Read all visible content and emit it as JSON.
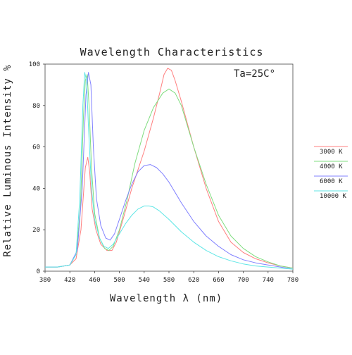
{
  "chart_data": {
    "type": "line",
    "title": "Wavelength Characteristics",
    "xlabel": "Wavelength λ (nm)",
    "ylabel": "Relative Luminous Intensity %",
    "annotation": "Ta=25C°",
    "xlim": [
      380,
      780
    ],
    "ylim": [
      0,
      100
    ],
    "x_ticks": [
      380,
      420,
      460,
      500,
      540,
      580,
      620,
      660,
      700,
      740,
      780
    ],
    "y_ticks": [
      0,
      20,
      40,
      60,
      80,
      100
    ],
    "grid": false,
    "legend_position": "right",
    "colors": {
      "axis": "#444444",
      "text": "#222222"
    },
    "series": [
      {
        "name": "3000 K",
        "color": "#ff7f7f",
        "points": [
          [
            380,
            2
          ],
          [
            400,
            2
          ],
          [
            420,
            3
          ],
          [
            430,
            6
          ],
          [
            438,
            20
          ],
          [
            445,
            50
          ],
          [
            449,
            55
          ],
          [
            452,
            48
          ],
          [
            456,
            30
          ],
          [
            462,
            20
          ],
          [
            470,
            13
          ],
          [
            480,
            10
          ],
          [
            488,
            10
          ],
          [
            495,
            14
          ],
          [
            505,
            24
          ],
          [
            520,
            40
          ],
          [
            540,
            58
          ],
          [
            555,
            74
          ],
          [
            565,
            86
          ],
          [
            572,
            95
          ],
          [
            578,
            98
          ],
          [
            584,
            97
          ],
          [
            590,
            92
          ],
          [
            600,
            82
          ],
          [
            620,
            60
          ],
          [
            640,
            40
          ],
          [
            660,
            24
          ],
          [
            680,
            14
          ],
          [
            700,
            9
          ],
          [
            720,
            6
          ],
          [
            740,
            4
          ],
          [
            760,
            2.5
          ],
          [
            780,
            1.5
          ]
        ]
      },
      {
        "name": "4000 K",
        "color": "#7fdd7f",
        "points": [
          [
            380,
            2
          ],
          [
            400,
            2
          ],
          [
            420,
            3
          ],
          [
            430,
            8
          ],
          [
            437,
            30
          ],
          [
            442,
            75
          ],
          [
            445,
            92
          ],
          [
            448,
            95
          ],
          [
            451,
            80
          ],
          [
            455,
            50
          ],
          [
            460,
            28
          ],
          [
            468,
            16
          ],
          [
            476,
            11
          ],
          [
            483,
            10
          ],
          [
            490,
            12
          ],
          [
            500,
            20
          ],
          [
            512,
            34
          ],
          [
            525,
            52
          ],
          [
            540,
            68
          ],
          [
            555,
            79
          ],
          [
            570,
            86
          ],
          [
            580,
            88
          ],
          [
            590,
            86
          ],
          [
            600,
            80
          ],
          [
            620,
            60
          ],
          [
            640,
            42
          ],
          [
            660,
            27
          ],
          [
            680,
            17
          ],
          [
            700,
            11
          ],
          [
            720,
            7
          ],
          [
            740,
            4.5
          ],
          [
            760,
            2.5
          ],
          [
            780,
            1.5
          ]
        ]
      },
      {
        "name": "6000 K",
        "color": "#8080ff",
        "points": [
          [
            380,
            2
          ],
          [
            400,
            2
          ],
          [
            420,
            3
          ],
          [
            432,
            10
          ],
          [
            440,
            40
          ],
          [
            446,
            85
          ],
          [
            450,
            96
          ],
          [
            454,
            90
          ],
          [
            458,
            60
          ],
          [
            463,
            35
          ],
          [
            470,
            22
          ],
          [
            478,
            16
          ],
          [
            485,
            15
          ],
          [
            492,
            18
          ],
          [
            500,
            25
          ],
          [
            510,
            34
          ],
          [
            520,
            42
          ],
          [
            530,
            48
          ],
          [
            540,
            51
          ],
          [
            550,
            51.5
          ],
          [
            560,
            50
          ],
          [
            570,
            47
          ],
          [
            580,
            43
          ],
          [
            600,
            33
          ],
          [
            620,
            24
          ],
          [
            640,
            17
          ],
          [
            660,
            12
          ],
          [
            680,
            8
          ],
          [
            700,
            5.5
          ],
          [
            720,
            4
          ],
          [
            740,
            3
          ],
          [
            760,
            2
          ],
          [
            780,
            1
          ]
        ]
      },
      {
        "name": "10000 K",
        "color": "#5fe6e6",
        "points": [
          [
            380,
            2
          ],
          [
            400,
            2
          ],
          [
            420,
            3
          ],
          [
            430,
            8
          ],
          [
            436,
            35
          ],
          [
            441,
            80
          ],
          [
            444,
            96
          ],
          [
            447,
            92
          ],
          [
            450,
            70
          ],
          [
            455,
            40
          ],
          [
            460,
            25
          ],
          [
            468,
            16
          ],
          [
            475,
            12
          ],
          [
            482,
            11
          ],
          [
            490,
            13
          ],
          [
            500,
            18
          ],
          [
            510,
            23
          ],
          [
            520,
            27
          ],
          [
            530,
            30
          ],
          [
            540,
            31.5
          ],
          [
            548,
            31.5
          ],
          [
            555,
            31
          ],
          [
            565,
            29
          ],
          [
            580,
            25
          ],
          [
            600,
            19
          ],
          [
            620,
            14
          ],
          [
            640,
            10
          ],
          [
            660,
            7
          ],
          [
            680,
            5
          ],
          [
            700,
            3.5
          ],
          [
            720,
            2.5
          ],
          [
            740,
            2
          ],
          [
            760,
            1.5
          ],
          [
            780,
            1
          ]
        ]
      }
    ]
  }
}
